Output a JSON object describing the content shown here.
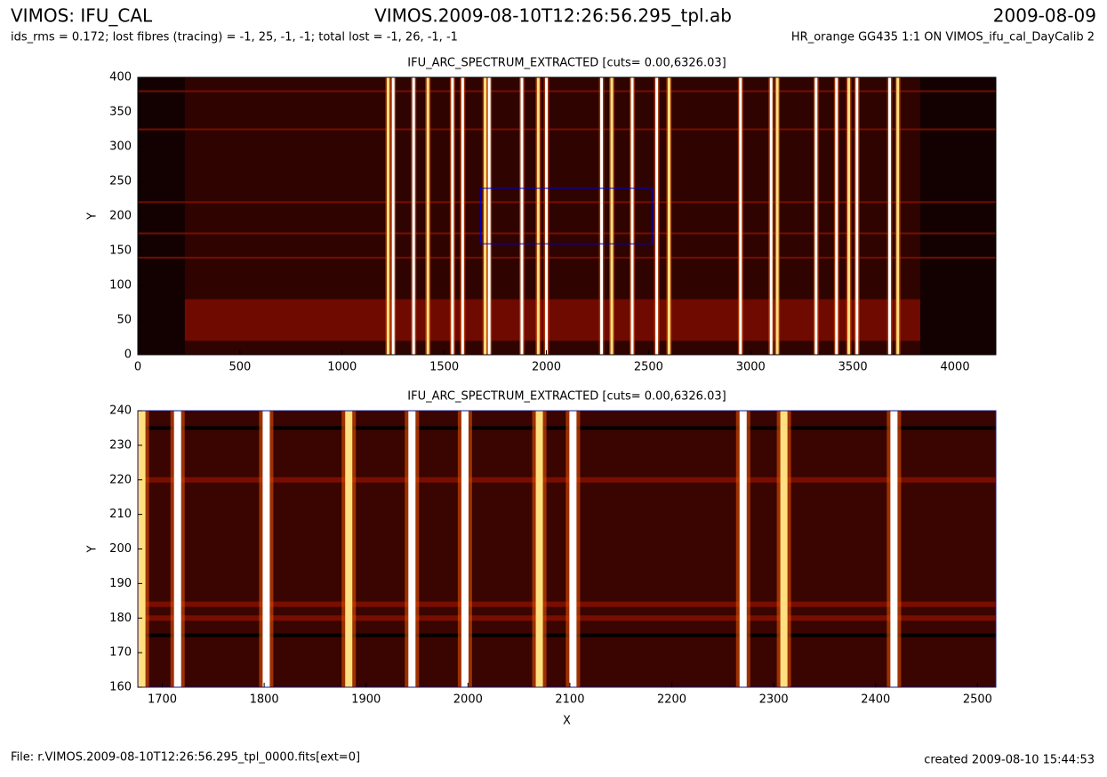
{
  "header": {
    "title": "VIMOS: IFU_CAL",
    "file_title": "VIMOS.2009-08-10T12:26:56.295_tpl.ab",
    "date": "2009-08-09",
    "info_left": "ids_rms = 0.172; lost fibres (tracing) = -1, 25, -1, -1; total lost = -1, 26, -1, -1",
    "info_right": "HR_orange GG435 1:1 ON VIMOS_ifu_cal_DayCalib 2"
  },
  "footer": {
    "file": "File: r.VIMOS.2009-08-10T12:26:56.295_tpl_0000.fits[ext=0]",
    "created": "created 2009-08-10 15:44:53"
  },
  "chart_data": [
    {
      "type": "image",
      "title": "IFU_ARC_SPECTRUM_EXTRACTED [cuts= 0.00,6326.03]",
      "ylabel": "Y",
      "xlim": [
        0,
        4200
      ],
      "ylim": [
        0,
        400
      ],
      "xticks": [
        0,
        500,
        1000,
        1500,
        2000,
        2500,
        3000,
        3500,
        4000
      ],
      "yticks": [
        0,
        50,
        100,
        150,
        200,
        250,
        300,
        350,
        400
      ],
      "data_x": [
        230,
        3830
      ],
      "band_y": [
        20,
        80
      ],
      "arc_lines": [
        1225,
        1250,
        1350,
        1420,
        1540,
        1590,
        1700,
        1720,
        1880,
        1960,
        2000,
        2270,
        2320,
        2420,
        2540,
        2600,
        2950,
        3100,
        3130,
        3320,
        3420,
        3480,
        3520,
        3680,
        3720
      ],
      "rows": [
        380,
        325,
        220,
        175,
        140
      ],
      "zoom_box": {
        "x": [
          1677,
          2517
        ],
        "y": [
          160,
          240
        ],
        "color": "#0000cc"
      }
    },
    {
      "type": "image",
      "title": "IFU_ARC_SPECTRUM_EXTRACTED [cuts= 0.00,6326.03]",
      "ylabel": "Y",
      "xlabel": "X",
      "xlim": [
        1676,
        2518
      ],
      "ylim": [
        160,
        240
      ],
      "xticks": [
        1700,
        1800,
        1900,
        2000,
        2100,
        2200,
        2300,
        2400,
        2500
      ],
      "yticks": [
        160,
        170,
        180,
        190,
        200,
        210,
        220,
        230,
        240
      ],
      "arc_lines": [
        1680,
        1715,
        1802,
        1883,
        1945,
        1997,
        2070,
        2103,
        2270,
        2310,
        2418
      ],
      "rows": [
        220,
        180,
        184
      ],
      "dark_rows": [
        235,
        175
      ]
    }
  ]
}
